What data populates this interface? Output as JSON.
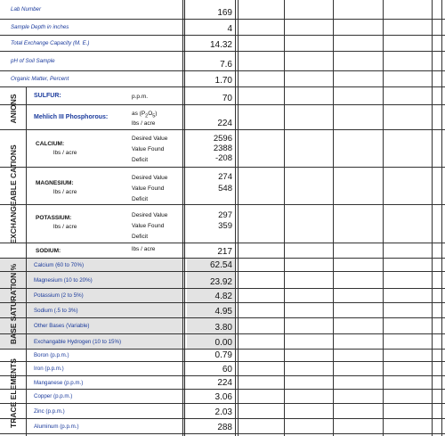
{
  "top_rows": [
    {
      "label": "Lab Number",
      "value": "169"
    },
    {
      "label": "Sample Depth in inches",
      "value": "4"
    },
    {
      "label": "Total Exchange Capacity (M. E.)",
      "value": "14.32"
    },
    {
      "label": "pH of Soil Sample",
      "value": "7.6"
    },
    {
      "label": "Organic Matter, Percent",
      "value": "1.70"
    }
  ],
  "anions": {
    "title": "ANIONS",
    "sulfur": {
      "label": "SULFUR:",
      "unit": "p.p.m.",
      "value": "70"
    },
    "phosphorous": {
      "label": "Mehlich III Phosphorous:",
      "unit_line1": "as (P",
      "unit_sub1": "2",
      "unit_mid": "O",
      "unit_sub2": "5",
      "unit_end": ")",
      "unit_line2": "lbs / acre",
      "value": "224"
    }
  },
  "cations": {
    "title": "EXCHANGEABLE CATIONS",
    "calcium": {
      "label": "CALCIUM:",
      "sublabel": "lbs / acre",
      "desired": "Desired Value",
      "found": "Value Found",
      "deficit": "Deficit",
      "values": [
        "2596",
        "2388",
        "-208"
      ]
    },
    "magnesium": {
      "label": "MAGNESIUM:",
      "sublabel": "lbs / acre",
      "desired": "Desired Value",
      "found": "Value Found",
      "deficit": "Deficit",
      "values": [
        "274",
        "548",
        ""
      ]
    },
    "potassium": {
      "label": "POTASSIUM:",
      "sublabel": "lbs / acre",
      "desired": "Desired Value",
      "found": "Value Found",
      "deficit": "Deficit",
      "values": [
        "297",
        "359",
        ""
      ]
    },
    "sodium": {
      "label": "SODIUM:",
      "unit": "lbs / acre",
      "value": "217"
    }
  },
  "base_saturation": {
    "title": "BASE SATURATION %",
    "rows": [
      {
        "label": "Calcium (60 to 70%)",
        "value": "62.54"
      },
      {
        "label": "Magnesium (10 to 20%)",
        "value": "23.92"
      },
      {
        "label": "Potassium (2 to 5%)",
        "value": "4.82"
      },
      {
        "label": "Sodium (.5 to 3%)",
        "value": "4.95"
      },
      {
        "label": "Other Bases (Variable)",
        "value": "3.80"
      },
      {
        "label": "Exchangable Hydrogen (10 to 15%)",
        "value": "0.00"
      }
    ]
  },
  "trace_elements": {
    "title": "TRACE ELEMENTS",
    "rows": [
      {
        "label": "Boron (p.p.m.)",
        "value": "0.79"
      },
      {
        "label": "Iron (p.p.m.)",
        "value": "60"
      },
      {
        "label": "Manganese (p.p.m.)",
        "value": "224"
      },
      {
        "label": "Copper (p.p.m.)",
        "value": "3.06"
      },
      {
        "label": "Zinc (p.p.m.)",
        "value": "2.03"
      },
      {
        "label": "Aluminum (p.p.m.)",
        "value": "288"
      }
    ]
  }
}
